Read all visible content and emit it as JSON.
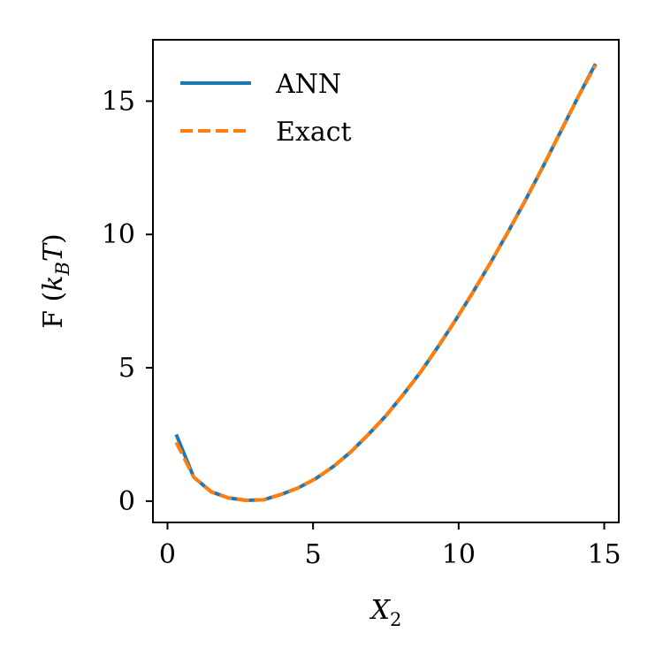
{
  "chart_data": {
    "type": "line",
    "xlabel": {
      "base": "X",
      "subscript": "2"
    },
    "ylabel": {
      "prefix": "F (",
      "var": "k",
      "subscript": "B",
      "suffix_var": "T",
      "close": ")"
    },
    "xlim": [
      -0.5,
      15.5
    ],
    "ylim": [
      -0.8,
      17.3
    ],
    "xticks": [
      0,
      5,
      10,
      15
    ],
    "yticks": [
      0,
      5,
      10,
      15
    ],
    "xtick_labels": [
      "0",
      "5",
      "10",
      "15"
    ],
    "ytick_labels": [
      "0",
      "5",
      "10",
      "15"
    ],
    "grid": false,
    "legend": {
      "position": "top-left"
    },
    "series": [
      {
        "name": "ANN",
        "color": "#1f77b4",
        "style": "solid",
        "x": [
          0.3,
          0.9,
          1.5,
          2.1,
          2.7,
          3.3,
          3.9,
          4.5,
          5.1,
          5.7,
          6.3,
          6.9,
          7.5,
          8.1,
          8.7,
          9.3,
          9.9,
          10.5,
          11.1,
          11.7,
          12.3,
          12.9,
          13.5,
          14.1,
          14.7
        ],
        "y": [
          2.5,
          0.9,
          0.35,
          0.12,
          0.03,
          0.05,
          0.25,
          0.5,
          0.85,
          1.3,
          1.85,
          2.5,
          3.2,
          4.0,
          4.85,
          5.8,
          6.8,
          7.85,
          8.95,
          10.1,
          11.3,
          12.55,
          13.85,
          15.15,
          16.4
        ]
      },
      {
        "name": "Exact",
        "color": "#ff7f0e",
        "style": "dashed",
        "x": [
          0.3,
          0.9,
          1.5,
          2.1,
          2.7,
          3.3,
          3.9,
          4.5,
          5.1,
          5.7,
          6.3,
          6.9,
          7.5,
          8.1,
          8.7,
          9.3,
          9.9,
          10.5,
          11.1,
          11.7,
          12.3,
          12.9,
          13.5,
          14.1,
          14.7
        ],
        "y": [
          2.2,
          0.9,
          0.35,
          0.12,
          0.03,
          0.05,
          0.25,
          0.5,
          0.85,
          1.3,
          1.85,
          2.5,
          3.2,
          4.0,
          4.85,
          5.8,
          6.8,
          7.85,
          8.95,
          10.1,
          11.3,
          12.55,
          13.85,
          15.15,
          16.35
        ]
      }
    ]
  }
}
